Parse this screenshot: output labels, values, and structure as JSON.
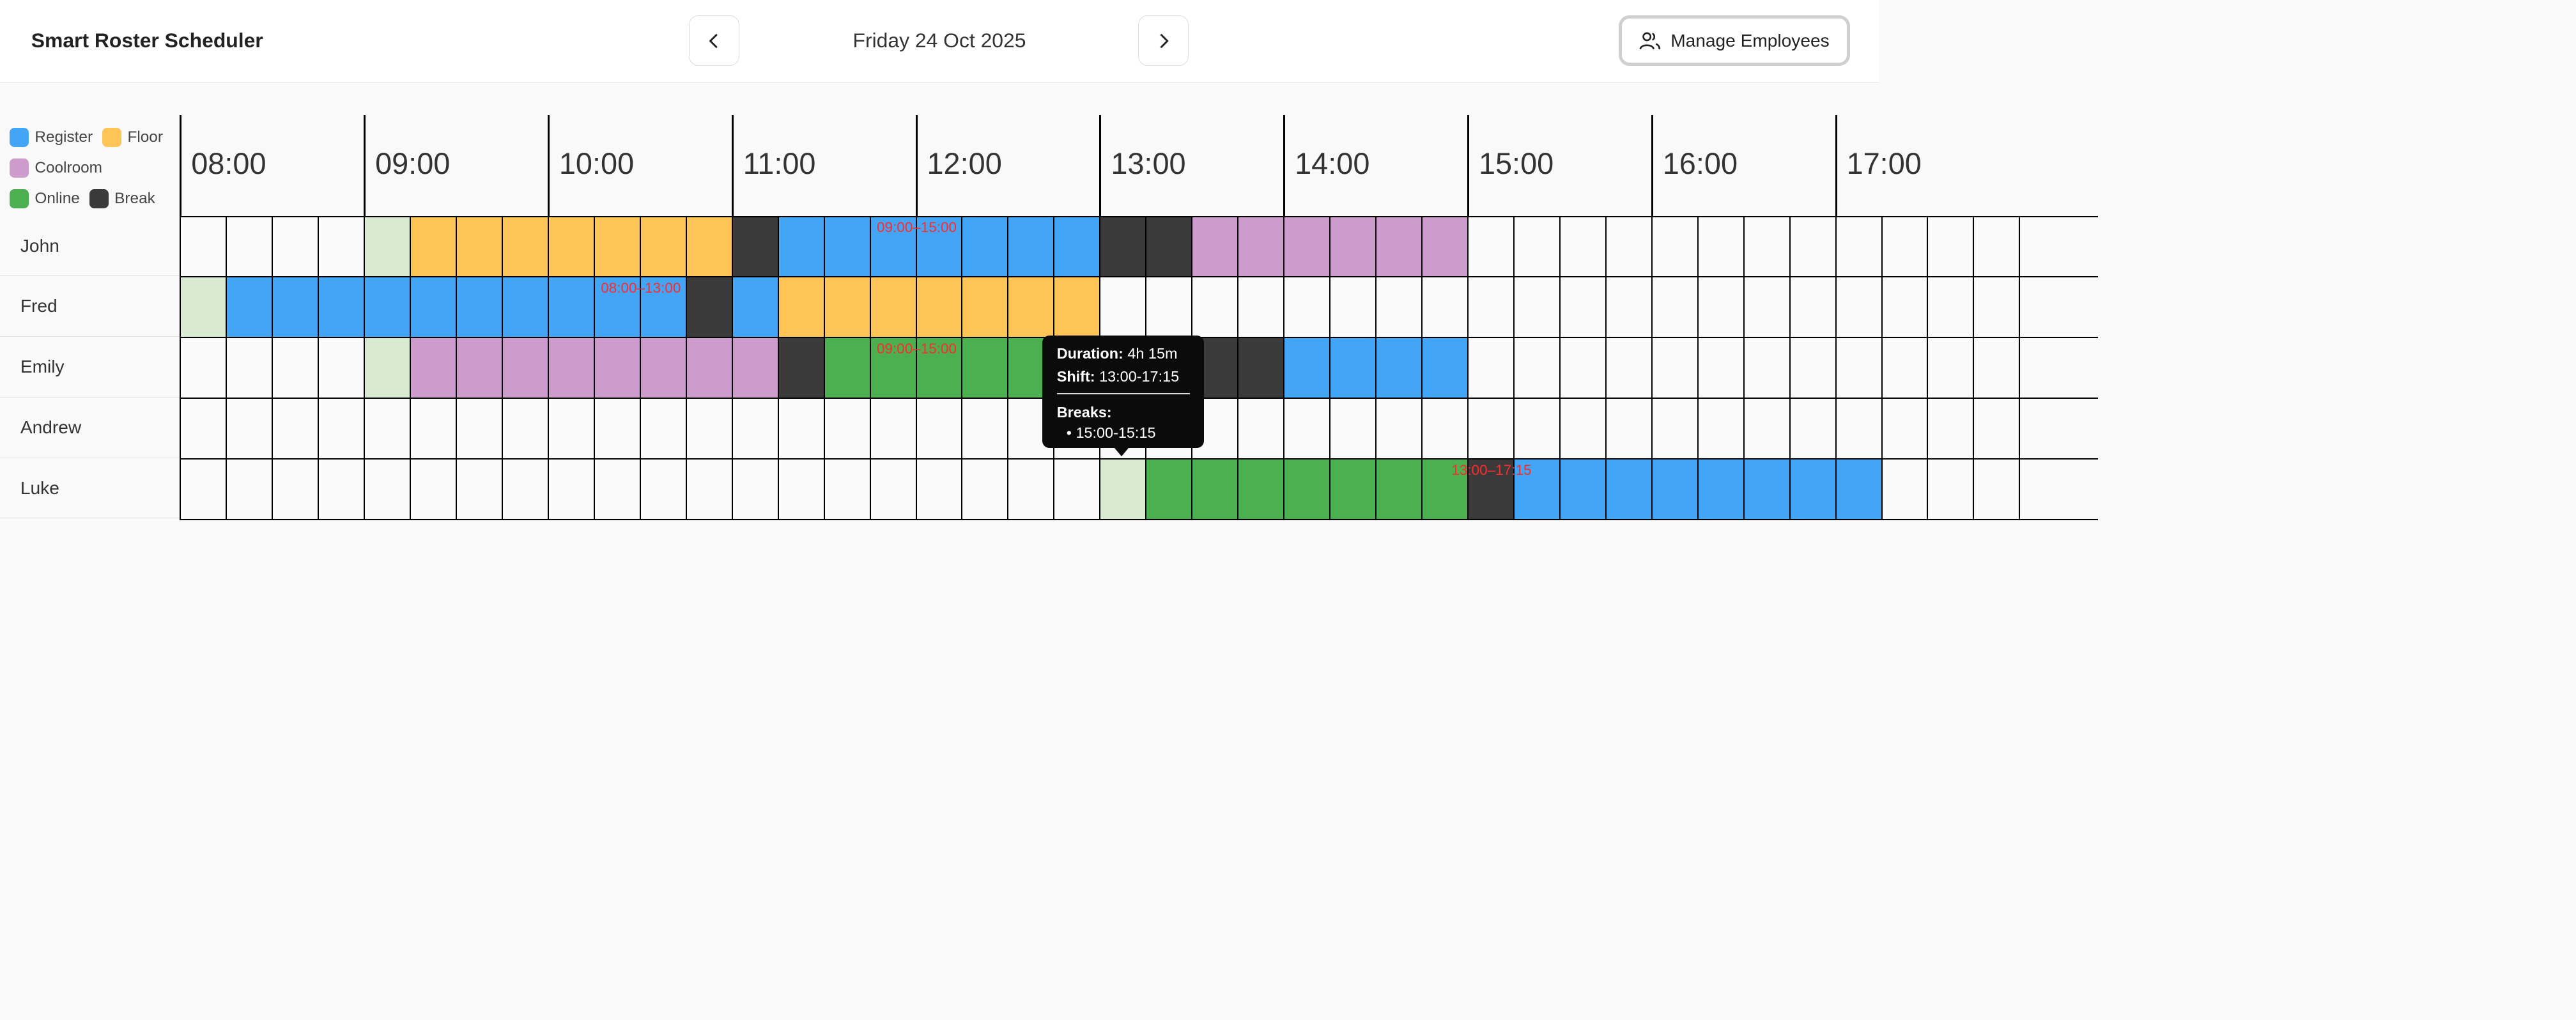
{
  "header": {
    "title": "Smart Roster Scheduler",
    "date": "Friday 24 Oct 2025",
    "prev_icon": "chevron-left-icon",
    "next_icon": "chevron-right-icon",
    "manage_label": "Manage Employees",
    "manage_icon": "users-icon"
  },
  "legend": [
    {
      "label": "Register",
      "color": "#42a5f5"
    },
    {
      "label": "Floor",
      "color": "#ffc456"
    },
    {
      "label": "Coolroom",
      "color": "#ce9bcd"
    },
    {
      "label": "Online",
      "color": "#4caf50"
    },
    {
      "label": "Break",
      "color": "#3a3a3a"
    }
  ],
  "colors": {
    "register": "#42a5f5",
    "floor": "#ffc456",
    "coolroom": "#ce9bcd",
    "online": "#4caf50",
    "break": "#3a3a3a",
    "start": "#d9ead3",
    "empty": "#fafafa"
  },
  "hours": [
    "08:00",
    "09:00",
    "10:00",
    "11:00",
    "12:00",
    "13:00",
    "14:00",
    "15:00",
    "16:00",
    "17:00"
  ],
  "employees": [
    {
      "name": "John",
      "shift": "09:00–15:00",
      "shift_start": "09:00",
      "shift_end": "15:00",
      "blocks": [
        [
          "09:00",
          "09:15",
          "start"
        ],
        [
          "09:15",
          "11:00",
          "floor"
        ],
        [
          "11:00",
          "11:15",
          "break"
        ],
        [
          "11:15",
          "13:00",
          "register"
        ],
        [
          "13:00",
          "13:30",
          "break"
        ],
        [
          "13:30",
          "15:00",
          "coolroom"
        ]
      ]
    },
    {
      "name": "Fred",
      "shift": "08:00–13:00",
      "shift_start": "08:00",
      "shift_end": "13:00",
      "blocks": [
        [
          "08:00",
          "08:15",
          "start"
        ],
        [
          "08:15",
          "10:45",
          "register"
        ],
        [
          "10:45",
          "11:00",
          "break"
        ],
        [
          "11:00",
          "11:15",
          "register"
        ],
        [
          "11:15",
          "13:00",
          "floor"
        ]
      ]
    },
    {
      "name": "Emily",
      "shift": "09:00–15:00",
      "shift_start": "09:00",
      "shift_end": "15:00",
      "blocks": [
        [
          "09:00",
          "09:15",
          "start"
        ],
        [
          "09:15",
          "11:15",
          "coolroom"
        ],
        [
          "11:15",
          "11:30",
          "break"
        ],
        [
          "11:30",
          "13:30",
          "online"
        ],
        [
          "13:30",
          "14:00",
          "break"
        ],
        [
          "14:00",
          "15:00",
          "register"
        ]
      ]
    },
    {
      "name": "Andrew",
      "shift": "",
      "blocks": []
    },
    {
      "name": "Luke",
      "shift": "13:00–17:15",
      "shift_start": "13:00",
      "shift_end": "17:15",
      "blocks": [
        [
          "13:00",
          "13:15",
          "start"
        ],
        [
          "13:15",
          "15:00",
          "online"
        ],
        [
          "15:00",
          "15:15",
          "break"
        ],
        [
          "15:15",
          "17:15",
          "register"
        ]
      ]
    }
  ],
  "tooltip": {
    "duration_label": "Duration:",
    "duration": "4h 15m",
    "shift_label": "Shift:",
    "shift": "13:00-17:15",
    "breaks_label": "Breaks:",
    "breaks": [
      "15:00-15:15"
    ]
  }
}
